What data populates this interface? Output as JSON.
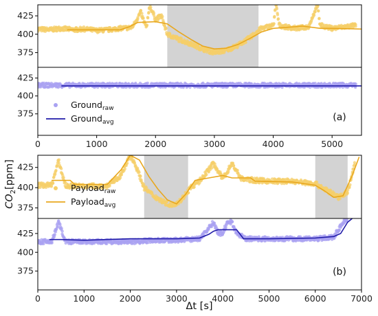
{
  "colors": {
    "raw_payload": "#f5cf6a",
    "avg_payload": "#e8a71e",
    "raw_ground": "#a9a2f2",
    "avg_ground": "#1f1aa8",
    "shade": "#d3d3d3"
  },
  "ylabel_main": "CO",
  "ylabel_sub": "2",
  "ylabel_unit": "[ppm]",
  "chart_data": [
    {
      "type": "line",
      "panel": "a-top",
      "xlim": [
        0,
        5500
      ],
      "ylim": [
        355,
        440
      ],
      "yticks": [
        375,
        400,
        425
      ],
      "shaded_regions": [
        [
          2200,
          3750
        ]
      ],
      "series": [
        {
          "name": "",
          "style": "raw",
          "color_key": "raw_payload",
          "x": [
            0,
            200,
            400,
            600,
            800,
            1000,
            1200,
            1400,
            1600,
            1750,
            1800,
            1850,
            1900,
            2000,
            2100,
            2200,
            2400,
            2600,
            2800,
            3000,
            3200,
            3400,
            3600,
            3750,
            3800,
            3900,
            4000,
            4050,
            4100,
            4200,
            4400,
            4600,
            4750,
            4800,
            4900,
            5000,
            5200,
            5400
          ],
          "y": [
            407,
            406,
            408,
            406,
            407,
            405,
            406,
            408,
            409,
            430,
            418,
            408,
            440,
            420,
            425,
            400,
            393,
            387,
            380,
            375,
            378,
            385,
            395,
            405,
            408,
            410,
            412,
            440,
            412,
            410,
            408,
            410,
            440,
            412,
            410,
            408,
            410,
            412
          ]
        },
        {
          "name": "",
          "style": "avg",
          "color_key": "avg_payload",
          "x": [
            500,
            1000,
            1400,
            1550,
            1700,
            2000,
            2200,
            2400,
            2600,
            2800,
            3000,
            3200,
            3400,
            3600,
            3800,
            4000,
            4500,
            4800,
            5000,
            5500
          ],
          "y": [
            406,
            406,
            406,
            410,
            416,
            417,
            414,
            403,
            393,
            384,
            380,
            381,
            386,
            394,
            403,
            408,
            411,
            408,
            408,
            407
          ]
        }
      ]
    },
    {
      "type": "line",
      "panel": "a-bottom",
      "xlim": [
        0,
        5500
      ],
      "ylim": [
        345,
        440
      ],
      "yticks": [
        375,
        400,
        425
      ],
      "xticks": [
        0,
        1000,
        2000,
        3000,
        4000,
        5000
      ],
      "tag": "(a)",
      "legend": {
        "position": "lower-left",
        "entries": [
          {
            "text": "Ground",
            "sub": "raw",
            "style": "raw",
            "color_key": "raw_ground"
          },
          {
            "text": "Ground",
            "sub": "avg",
            "style": "avg",
            "color_key": "avg_ground"
          }
        ]
      },
      "series": [
        {
          "name": "Groundraw",
          "style": "raw",
          "color_key": "raw_ground",
          "x": [
            0,
            500,
            1000,
            1500,
            2000,
            2500,
            3000,
            3500,
            4000,
            4500,
            5000,
            5400
          ],
          "y": [
            415,
            415,
            415,
            415,
            415,
            415,
            415,
            415,
            415,
            415,
            415,
            415
          ]
        },
        {
          "name": "Groundavg",
          "style": "avg",
          "color_key": "avg_ground",
          "x": [
            400,
            1000,
            2000,
            3000,
            4000,
            5000,
            5500
          ],
          "y": [
            414,
            414,
            414,
            414,
            414,
            414,
            414
          ]
        }
      ]
    },
    {
      "type": "line",
      "panel": "b-top",
      "xlim": [
        0,
        7000
      ],
      "ylim": [
        362,
        440
      ],
      "yticks": [
        375,
        400,
        425
      ],
      "shaded_regions": [
        [
          2300,
          3250
        ],
        [
          6000,
          6700
        ]
      ],
      "legend": {
        "position": "lower-left",
        "entries": [
          {
            "text": "Payload",
            "sub": "raw",
            "style": "raw",
            "color_key": "raw_payload"
          },
          {
            "text": "Payload",
            "sub": "avg",
            "style": "avg",
            "color_key": "avg_payload"
          }
        ]
      },
      "series": [
        {
          "name": "Payloadraw",
          "style": "raw",
          "color_key": "raw_payload",
          "x": [
            0,
            300,
            450,
            600,
            900,
            1200,
            1500,
            1800,
            2000,
            2100,
            2200,
            2300,
            2500,
            2700,
            2900,
            3100,
            3300,
            3500,
            3800,
            4000,
            4200,
            4400,
            4700,
            5000,
            5500,
            6000,
            6300,
            6500,
            6700,
            6850
          ],
          "y": [
            403,
            403,
            433,
            402,
            402,
            402,
            402,
            415,
            440,
            430,
            415,
            400,
            390,
            383,
            378,
            385,
            400,
            408,
            430,
            411,
            430,
            411,
            409,
            408,
            408,
            405,
            395,
            388,
            395,
            428
          ]
        },
        {
          "name": "Payloadavg",
          "style": "avg",
          "color_key": "avg_payload",
          "x": [
            300,
            700,
            800,
            1500,
            1600,
            1800,
            2000,
            2200,
            2400,
            2600,
            2800,
            3000,
            3200,
            3400,
            3700,
            4000,
            4200,
            4600,
            4700,
            5500,
            6000,
            6200,
            6400,
            6600,
            6800,
            6950
          ],
          "y": [
            409,
            409,
            404,
            404,
            410,
            422,
            440,
            434,
            414,
            398,
            385,
            380,
            392,
            409,
            412,
            415,
            412,
            412,
            408,
            407,
            403,
            396,
            388,
            390,
            415,
            438
          ]
        }
      ]
    },
    {
      "type": "line",
      "panel": "b-bottom",
      "xlim": [
        0,
        7000
      ],
      "ylim": [
        350,
        445
      ],
      "yticks": [
        375,
        400,
        425
      ],
      "xticks": [
        0,
        1000,
        2000,
        3000,
        4000,
        5000,
        6000,
        7000
      ],
      "xlabel": "Δt [s]",
      "tag": "(b)",
      "series": [
        {
          "name": "",
          "style": "raw",
          "color_key": "raw_ground",
          "x": [
            0,
            300,
            450,
            600,
            1000,
            1500,
            2000,
            2500,
            3000,
            3500,
            3800,
            3900,
            4000,
            4100,
            4200,
            4300,
            4500,
            5000,
            5500,
            6000,
            6400,
            6600,
            6700
          ],
          "y": [
            414,
            414,
            440,
            414,
            414,
            414,
            414,
            416,
            416,
            418,
            440,
            425,
            425,
            440,
            440,
            425,
            418,
            418,
            418,
            418,
            420,
            440,
            445
          ]
        },
        {
          "name": "",
          "style": "avg",
          "color_key": "avg_ground",
          "x": [
            250,
            500,
            1000,
            2000,
            3000,
            3500,
            3700,
            3800,
            3900,
            4300,
            4450,
            5000,
            6000,
            6400,
            6550,
            6700,
            6800
          ],
          "y": [
            417,
            417,
            416,
            418,
            418,
            419,
            424,
            428,
            430,
            430,
            418,
            418,
            419,
            421,
            425,
            440,
            445
          ]
        }
      ]
    }
  ]
}
